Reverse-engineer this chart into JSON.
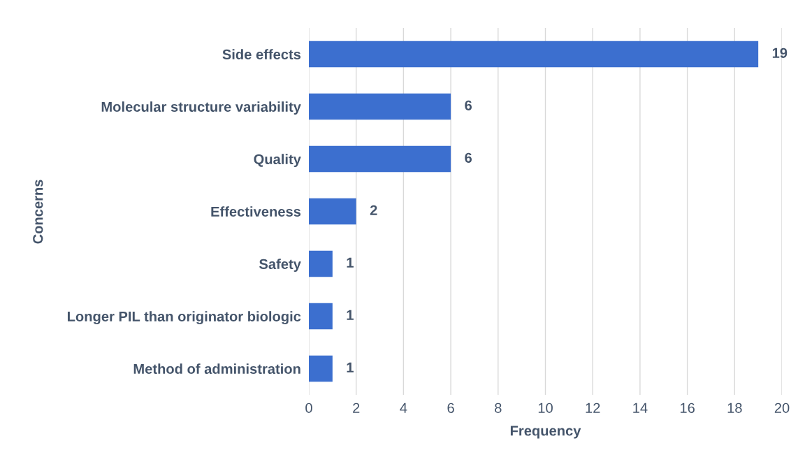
{
  "chart_data": {
    "type": "bar",
    "orientation": "horizontal",
    "xlabel": "Frequency",
    "ylabel": "Concerns",
    "categories": [
      "Side effects",
      "Molecular structure variability",
      "Quality",
      "Effectiveness",
      "Safety",
      "Longer PIL than originator biologic",
      "Method of administration"
    ],
    "values": [
      19,
      6,
      6,
      2,
      1,
      1,
      1
    ],
    "color": "#3c6fcf",
    "xlim": [
      0,
      20
    ],
    "xticks": [
      0,
      2,
      4,
      6,
      8,
      10,
      12,
      14,
      16,
      18,
      20
    ],
    "grid": "x",
    "data_labels": true
  }
}
